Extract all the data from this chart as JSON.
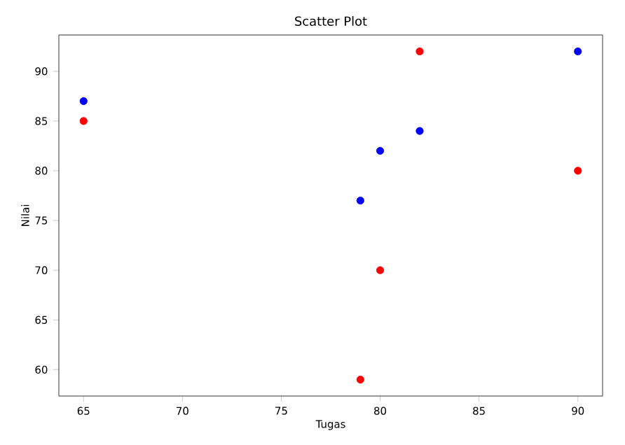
{
  "chart_data": {
    "type": "scatter",
    "title": "Scatter Plot",
    "xlabel": "Tugas",
    "ylabel": "Nilai",
    "xlim": [
      63.75,
      91.25
    ],
    "xticks": [
      65,
      70,
      75,
      80,
      85,
      90
    ],
    "ylim": [
      57.35,
      93.65
    ],
    "yticks": [
      60,
      65,
      70,
      75,
      80,
      85,
      90
    ],
    "marker": "circle",
    "series": [
      {
        "color": "#0000ff",
        "x": [
          65,
          79,
          80,
          82,
          90
        ],
        "values": [
          87,
          77,
          82,
          84,
          92
        ]
      },
      {
        "color": "#ff0000",
        "x": [
          65,
          79,
          80,
          82,
          90
        ],
        "values": [
          85,
          59,
          70,
          92,
          80
        ]
      }
    ]
  }
}
